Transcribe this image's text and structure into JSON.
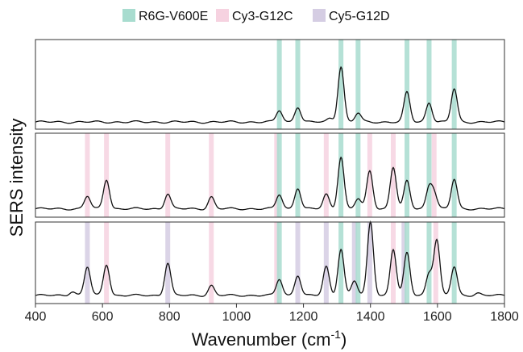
{
  "chart_data": {
    "type": "line",
    "xlabel": "Wavenumber (cm",
    "xlabel_superscript": "-1",
    "xlabel_suffix": ")",
    "ylabel": "SERS intensity",
    "xlim": [
      400,
      1800
    ],
    "x_ticks": [
      "400",
      "600",
      "800",
      "1000",
      "1200",
      "1400",
      "1600",
      "1800"
    ],
    "legend": {
      "placement": "top-center",
      "entries": [
        {
          "label": "R6G-V600E",
          "color": "#a8dccf"
        },
        {
          "label": "Cy3-G12C",
          "color": "#f6d2e0"
        },
        {
          "label": "Cy5-G12D",
          "color": "#d5cde3"
        }
      ]
    },
    "panels": [
      {
        "bands": [
          {
            "x": 1128,
            "group": "R6G-V600E"
          },
          {
            "x": 1183,
            "group": "R6G-V600E"
          },
          {
            "x": 1312,
            "group": "R6G-V600E"
          },
          {
            "x": 1363,
            "group": "R6G-V600E"
          },
          {
            "x": 1509,
            "group": "R6G-V600E"
          },
          {
            "x": 1575,
            "group": "R6G-V600E"
          },
          {
            "x": 1650,
            "group": "R6G-V600E"
          }
        ],
        "baseline": 0.08,
        "peaks": [
          {
            "x": 1128,
            "h": 0.13
          },
          {
            "x": 1183,
            "h": 0.17
          },
          {
            "x": 1280,
            "h": 0.04
          },
          {
            "x": 1312,
            "h": 0.62
          },
          {
            "x": 1363,
            "h": 0.1
          },
          {
            "x": 1509,
            "h": 0.33
          },
          {
            "x": 1575,
            "h": 0.22
          },
          {
            "x": 1650,
            "h": 0.37
          }
        ]
      },
      {
        "bands": [
          {
            "x": 555,
            "group": "Cy3-G12C"
          },
          {
            "x": 612,
            "group": "Cy3-G12C"
          },
          {
            "x": 795,
            "group": "Cy3-G12C"
          },
          {
            "x": 925,
            "group": "Cy3-G12C"
          },
          {
            "x": 1120,
            "group": "Cy3-G12C"
          },
          {
            "x": 1128,
            "group": "R6G-V600E"
          },
          {
            "x": 1183,
            "group": "R6G-V600E"
          },
          {
            "x": 1268,
            "group": "Cy3-G12C"
          },
          {
            "x": 1312,
            "group": "R6G-V600E"
          },
          {
            "x": 1363,
            "group": "R6G-V600E"
          },
          {
            "x": 1398,
            "group": "Cy3-G12C"
          },
          {
            "x": 1468,
            "group": "Cy3-G12C"
          },
          {
            "x": 1509,
            "group": "R6G-V600E"
          },
          {
            "x": 1575,
            "group": "R6G-V600E"
          },
          {
            "x": 1590,
            "group": "Cy3-G12C"
          },
          {
            "x": 1650,
            "group": "R6G-V600E"
          }
        ],
        "baseline": 0.1,
        "peaks": [
          {
            "x": 555,
            "h": 0.15
          },
          {
            "x": 612,
            "h": 0.35
          },
          {
            "x": 795,
            "h": 0.18
          },
          {
            "x": 925,
            "h": 0.14
          },
          {
            "x": 1128,
            "h": 0.17
          },
          {
            "x": 1183,
            "h": 0.25
          },
          {
            "x": 1268,
            "h": 0.17
          },
          {
            "x": 1312,
            "h": 0.62
          },
          {
            "x": 1363,
            "h": 0.12
          },
          {
            "x": 1398,
            "h": 0.45
          },
          {
            "x": 1468,
            "h": 0.5
          },
          {
            "x": 1509,
            "h": 0.33
          },
          {
            "x": 1575,
            "h": 0.25
          },
          {
            "x": 1590,
            "h": 0.18
          },
          {
            "x": 1650,
            "h": 0.35
          }
        ]
      },
      {
        "bands": [
          {
            "x": 555,
            "group": "Cy5-G12D"
          },
          {
            "x": 612,
            "group": "Cy3-G12C"
          },
          {
            "x": 795,
            "group": "Cy5-G12D"
          },
          {
            "x": 925,
            "group": "Cy3-G12C"
          },
          {
            "x": 1120,
            "group": "Cy3-G12C"
          },
          {
            "x": 1128,
            "group": "R6G-V600E"
          },
          {
            "x": 1183,
            "group": "Cy5-G12D"
          },
          {
            "x": 1268,
            "group": "Cy5-G12D"
          },
          {
            "x": 1312,
            "group": "R6G-V600E"
          },
          {
            "x": 1352,
            "group": "Cy5-G12D"
          },
          {
            "x": 1363,
            "group": "R6G-V600E"
          },
          {
            "x": 1398,
            "group": "Cy5-G12D"
          },
          {
            "x": 1468,
            "group": "Cy3-G12C"
          },
          {
            "x": 1500,
            "group": "Cy5-G12D"
          },
          {
            "x": 1509,
            "group": "R6G-V600E"
          },
          {
            "x": 1575,
            "group": "R6G-V600E"
          },
          {
            "x": 1595,
            "group": "Cy3-G12C"
          },
          {
            "x": 1650,
            "group": "R6G-V600E"
          }
        ],
        "baseline": 0.1,
        "peaks": [
          {
            "x": 510,
            "h": 0.05
          },
          {
            "x": 555,
            "h": 0.35
          },
          {
            "x": 612,
            "h": 0.38
          },
          {
            "x": 795,
            "h": 0.4
          },
          {
            "x": 925,
            "h": 0.12
          },
          {
            "x": 1128,
            "h": 0.2
          },
          {
            "x": 1183,
            "h": 0.25
          },
          {
            "x": 1268,
            "h": 0.35
          },
          {
            "x": 1312,
            "h": 0.57
          },
          {
            "x": 1352,
            "h": 0.18
          },
          {
            "x": 1400,
            "h": 0.9
          },
          {
            "x": 1468,
            "h": 0.57
          },
          {
            "x": 1509,
            "h": 0.52
          },
          {
            "x": 1575,
            "h": 0.27
          },
          {
            "x": 1598,
            "h": 0.68
          },
          {
            "x": 1650,
            "h": 0.35
          },
          {
            "x": 1720,
            "h": 0.03
          }
        ]
      }
    ]
  }
}
